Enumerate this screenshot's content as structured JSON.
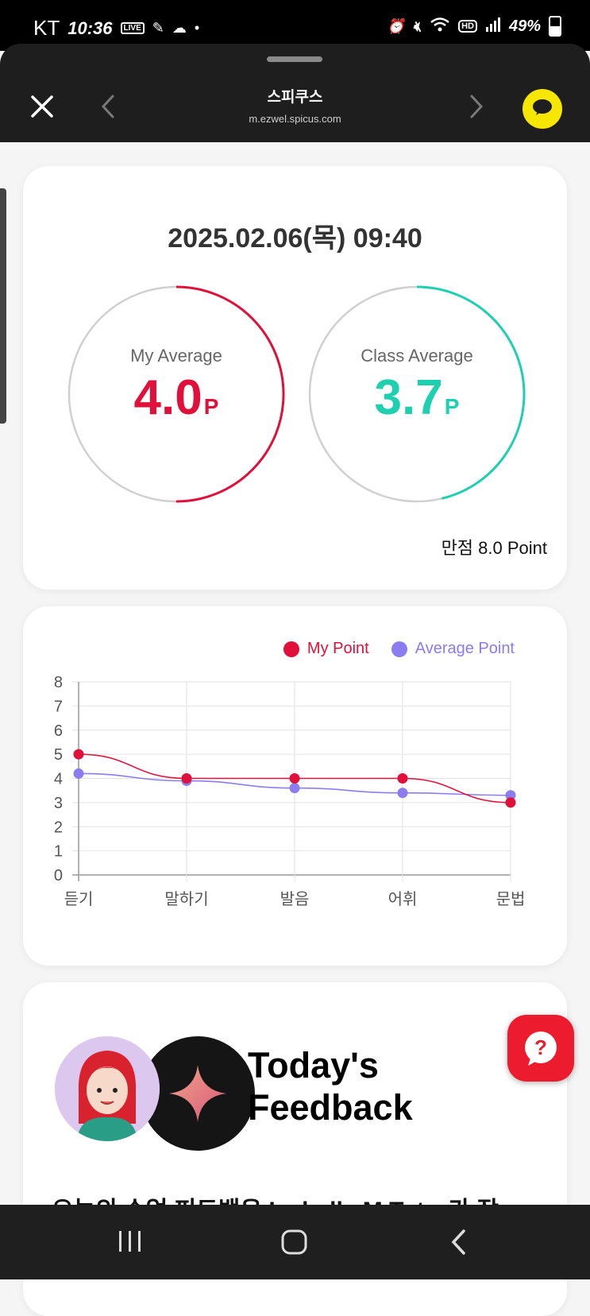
{
  "status_bar": {
    "carrier": "KT",
    "time": "10:36",
    "battery": "49%",
    "live_badge": "LIVE",
    "hd_badge": "HD"
  },
  "header": {
    "title": "스피쿠스",
    "url": "m.ezwel.spicus.com"
  },
  "summary": {
    "datetime": "2025.02.06(목) 09:40",
    "my_average": {
      "label": "My Average",
      "value": "4.0",
      "unit": "P",
      "color": "#e0103a",
      "fraction": 0.5
    },
    "class_average": {
      "label": "Class Average",
      "value": "3.7",
      "unit": "P",
      "color": "#1ecfb0",
      "fraction": 0.4625
    },
    "full_mark": "만점 8.0 Point"
  },
  "chart_data": {
    "type": "line",
    "categories": [
      "듣기",
      "말하기",
      "발음",
      "어휘",
      "문법"
    ],
    "series": [
      {
        "name": "My Point",
        "values": [
          5,
          4,
          4,
          4,
          3
        ],
        "color": "#e0103a"
      },
      {
        "name": "Average Point",
        "values": [
          4.2,
          3.9,
          3.6,
          3.4,
          3.3
        ],
        "color": "#8b7cf0"
      }
    ],
    "yticks": [
      "0",
      "1",
      "2",
      "3",
      "4",
      "5",
      "6",
      "7",
      "8"
    ],
    "ylim": [
      0,
      8
    ],
    "grid": true,
    "legend": "top-right"
  },
  "feedback": {
    "title_line1": "Today's",
    "title_line2": "Feedback",
    "text": "오늘의 수업 피드백은 Isabella M Tutor가 작"
  },
  "icons": {
    "close": "close-icon",
    "prev": "chevron-left-icon",
    "next": "chevron-right-icon",
    "kakao": "chat-bubble-icon",
    "help": "help-question-icon"
  }
}
